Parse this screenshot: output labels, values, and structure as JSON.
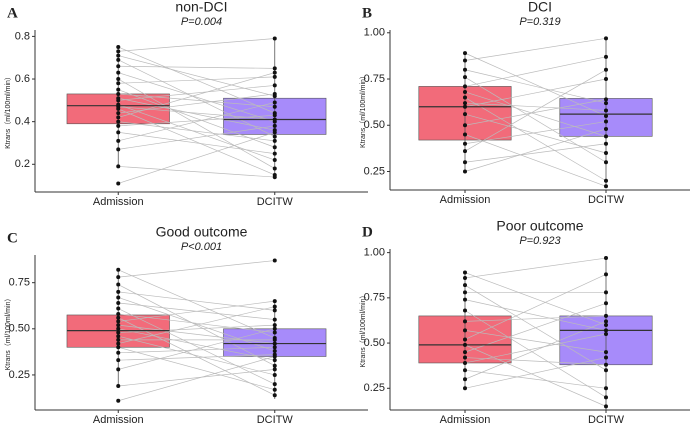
{
  "chart_data": [
    {
      "type": "box",
      "label": "A",
      "title": "non-DCI",
      "subtitle": "P=0.004",
      "ylabel": "Ktrans（ml/100ml/min）",
      "categories": [
        "Admission",
        "DCITW"
      ],
      "colors": [
        "#f26b7a",
        "#a78bfa"
      ],
      "ylim": [
        0.07,
        0.83
      ],
      "yticks": [
        0.2,
        0.4,
        0.6,
        0.8
      ],
      "boxes": [
        {
          "q1": 0.39,
          "median": 0.475,
          "q3": 0.53,
          "whisker_low": 0.19,
          "whisker_high": 0.75
        },
        {
          "q1": 0.34,
          "median": 0.41,
          "q3": 0.51,
          "whisker_low": 0.13,
          "whisker_high": 0.79
        }
      ],
      "points": [
        [
          0.75,
          0.73,
          0.71,
          0.69,
          0.66,
          0.63,
          0.6,
          0.58,
          0.55,
          0.53,
          0.51,
          0.5,
          0.48,
          0.47,
          0.46,
          0.44,
          0.42,
          0.4,
          0.38,
          0.35,
          0.31,
          0.27,
          0.19,
          0.11
        ],
        [
          0.44,
          0.79,
          0.52,
          0.33,
          0.65,
          0.4,
          0.18,
          0.61,
          0.28,
          0.47,
          0.36,
          0.57,
          0.22,
          0.41,
          0.15,
          0.53,
          0.63,
          0.31,
          0.43,
          0.25,
          0.49,
          0.38,
          0.14,
          0.35
        ]
      ]
    },
    {
      "type": "box",
      "label": "B",
      "title": "DCI",
      "subtitle": "P=0.319",
      "ylabel": "Ktrans（ml/100ml/min）",
      "categories": [
        "Admission",
        "DCITW"
      ],
      "colors": [
        "#f26b7a",
        "#a78bfa"
      ],
      "ylim": [
        0.15,
        1.015
      ],
      "yticks": [
        {
          "value": 0.25,
          "label": "0.25"
        },
        {
          "value": 0.5,
          "label": "0.50"
        },
        {
          "value": 0.75,
          "label": "0.75"
        },
        {
          "value": 1,
          "label": "1.00"
        }
      ],
      "boxes": [
        {
          "q1": 0.42,
          "median": 0.6,
          "q3": 0.71,
          "whisker_low": 0.25,
          "whisker_high": 0.89
        },
        {
          "q1": 0.44,
          "median": 0.56,
          "q3": 0.645,
          "whisker_low": 0.17,
          "whisker_high": 0.97
        }
      ],
      "points": [
        [
          0.89,
          0.85,
          0.8,
          0.76,
          0.71,
          0.68,
          0.65,
          0.62,
          0.6,
          0.56,
          0.5,
          0.45,
          0.4,
          0.36,
          0.3,
          0.25
        ],
        [
          0.55,
          0.97,
          0.62,
          0.3,
          0.87,
          0.44,
          0.2,
          0.58,
          0.75,
          0.35,
          0.64,
          0.17,
          0.52,
          0.8,
          0.4,
          0.48
        ]
      ]
    },
    {
      "type": "box",
      "label": "C",
      "title": "Good outcome",
      "subtitle": "P<0.001",
      "ylabel": "Ktrans（ml/100ml/min）",
      "categories": [
        "Admission",
        "DCITW"
      ],
      "colors": [
        "#f26b7a",
        "#a78bfa"
      ],
      "ylim": [
        0.06,
        0.9
      ],
      "yticks": [
        {
          "value": 0.25,
          "label": "0.25"
        },
        {
          "value": 0.5,
          "label": "0.50"
        },
        {
          "value": 0.75,
          "label": "0.75"
        }
      ],
      "boxes": [
        {
          "q1": 0.4,
          "median": 0.49,
          "q3": 0.575,
          "whisker_low": 0.19,
          "whisker_high": 0.82
        },
        {
          "q1": 0.35,
          "median": 0.42,
          "q3": 0.5,
          "whisker_low": 0.12,
          "whisker_high": 0.65
        }
      ],
      "points": [
        [
          0.82,
          0.78,
          0.74,
          0.7,
          0.67,
          0.64,
          0.61,
          0.58,
          0.56,
          0.54,
          0.52,
          0.5,
          0.48,
          0.46,
          0.44,
          0.42,
          0.4,
          0.37,
          0.33,
          0.28,
          0.19,
          0.11
        ],
        [
          0.45,
          0.87,
          0.3,
          0.6,
          0.38,
          0.55,
          0.2,
          0.48,
          0.14,
          0.65,
          0.42,
          0.33,
          0.52,
          0.25,
          0.44,
          0.62,
          0.17,
          0.4,
          0.36,
          0.5,
          0.28,
          0.35
        ]
      ]
    },
    {
      "type": "box",
      "label": "D",
      "title": "Poor outcome",
      "subtitle": "P=0.923",
      "ylabel": "Ktrans（ml/100ml/min）",
      "categories": [
        "Admission",
        "DCITW"
      ],
      "colors": [
        "#f26b7a",
        "#a78bfa"
      ],
      "ylim": [
        0.13,
        1.02
      ],
      "yticks": [
        {
          "value": 0.25,
          "label": "0.25"
        },
        {
          "value": 0.5,
          "label": "0.50"
        },
        {
          "value": 0.75,
          "label": "0.75"
        },
        {
          "value": 1,
          "label": "1.00"
        }
      ],
      "boxes": [
        {
          "q1": 0.39,
          "median": 0.49,
          "q3": 0.65,
          "whisker_low": 0.25,
          "whisker_high": 0.89
        },
        {
          "q1": 0.38,
          "median": 0.57,
          "q3": 0.65,
          "whisker_low": 0.13,
          "whisker_high": 0.97
        }
      ],
      "points": [
        [
          0.89,
          0.86,
          0.82,
          0.78,
          0.74,
          0.68,
          0.62,
          0.57,
          0.52,
          0.49,
          0.45,
          0.42,
          0.39,
          0.35,
          0.3,
          0.25
        ],
        [
          0.6,
          0.97,
          0.35,
          0.78,
          0.57,
          0.2,
          0.65,
          0.45,
          0.88,
          0.15,
          0.72,
          0.38,
          0.55,
          0.25,
          0.62,
          0.42
        ]
      ]
    }
  ]
}
